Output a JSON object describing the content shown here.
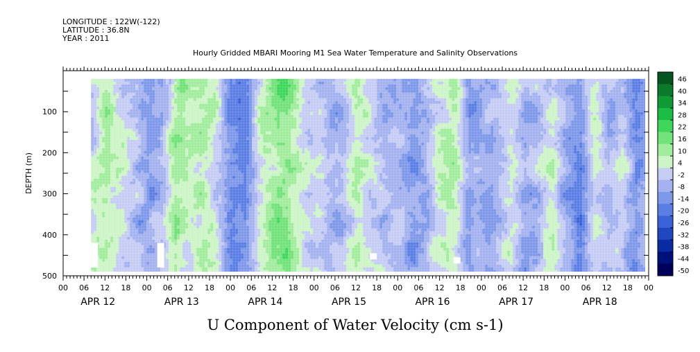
{
  "header": {
    "longitude": "LONGITUDE : 122W(-122)",
    "latitude": "LATITUDE : 36.8N",
    "year": "YEAR : 2011",
    "title": "Hourly Gridded MBARI Mooring M1 Sea Water Temperature and Salinity Observations"
  },
  "chart_data": {
    "type": "heatmap",
    "title": "U Component of Water Velocity (cm s-1)",
    "xlabel": "",
    "ylabel": "DEPTH (m)",
    "x_range_hours": [
      0,
      168
    ],
    "x_tick_labels": [
      "00",
      "06",
      "12",
      "18",
      "00",
      "06",
      "12",
      "18",
      "00",
      "06",
      "12",
      "18",
      "00",
      "06",
      "12",
      "18",
      "00",
      "06",
      "12",
      "18",
      "00",
      "06",
      "12",
      "18",
      "00",
      "06",
      "12",
      "18",
      "00"
    ],
    "date_labels": [
      "APR 12",
      "APR 13",
      "APR 14",
      "APR 15",
      "APR 16",
      "APR 17",
      "APR 18"
    ],
    "y_range": [
      0,
      500
    ],
    "y_reversed": true,
    "y_ticks": [
      100,
      200,
      300,
      400,
      500
    ],
    "y_tick_labels": [
      "100",
      "200",
      "300",
      "400",
      "500"
    ],
    "data_depth_range": [
      20,
      490
    ],
    "data_time_range_hours": [
      8,
      167
    ],
    "colorbar": {
      "levels": [
        -50,
        -44,
        -38,
        -32,
        -26,
        -20,
        -14,
        -8,
        -2,
        4,
        10,
        16,
        22,
        28,
        34,
        40,
        46
      ],
      "labels": [
        "46",
        "40",
        "34",
        "28",
        "22",
        "16",
        "10",
        "4",
        "-2",
        "-8",
        "-14",
        "-20",
        "-26",
        "-32",
        "-38",
        "-44",
        "-50"
      ]
    },
    "time_profile": {
      "hours": [
        8,
        12,
        16,
        20,
        24,
        28,
        32,
        36,
        40,
        44,
        48,
        52,
        56,
        60,
        64,
        68,
        72,
        76,
        80,
        84,
        88,
        92,
        96,
        100,
        104,
        108,
        112,
        116,
        120,
        124,
        128,
        132,
        136,
        140,
        144,
        148,
        152,
        156,
        160,
        164,
        167
      ],
      "u_cm_s": [
        6,
        12,
        4,
        -2,
        -10,
        -4,
        14,
        6,
        10,
        2,
        -10,
        -14,
        4,
        14,
        18,
        8,
        2,
        -6,
        -4,
        10,
        4,
        -6,
        -2,
        -10,
        -6,
        6,
        10,
        -12,
        -6,
        -4,
        6,
        -8,
        -2,
        6,
        -10,
        -14,
        4,
        -4,
        2,
        -14,
        -10
      ]
    },
    "missing_patches": [
      {
        "hour": 9,
        "depth": [
          420,
          480
        ]
      },
      {
        "hour": 28,
        "depth": [
          420,
          480
        ]
      },
      {
        "hour": 89,
        "depth": [
          445,
          460
        ]
      },
      {
        "hour": 113,
        "depth": [
          455,
          470
        ]
      }
    ]
  }
}
